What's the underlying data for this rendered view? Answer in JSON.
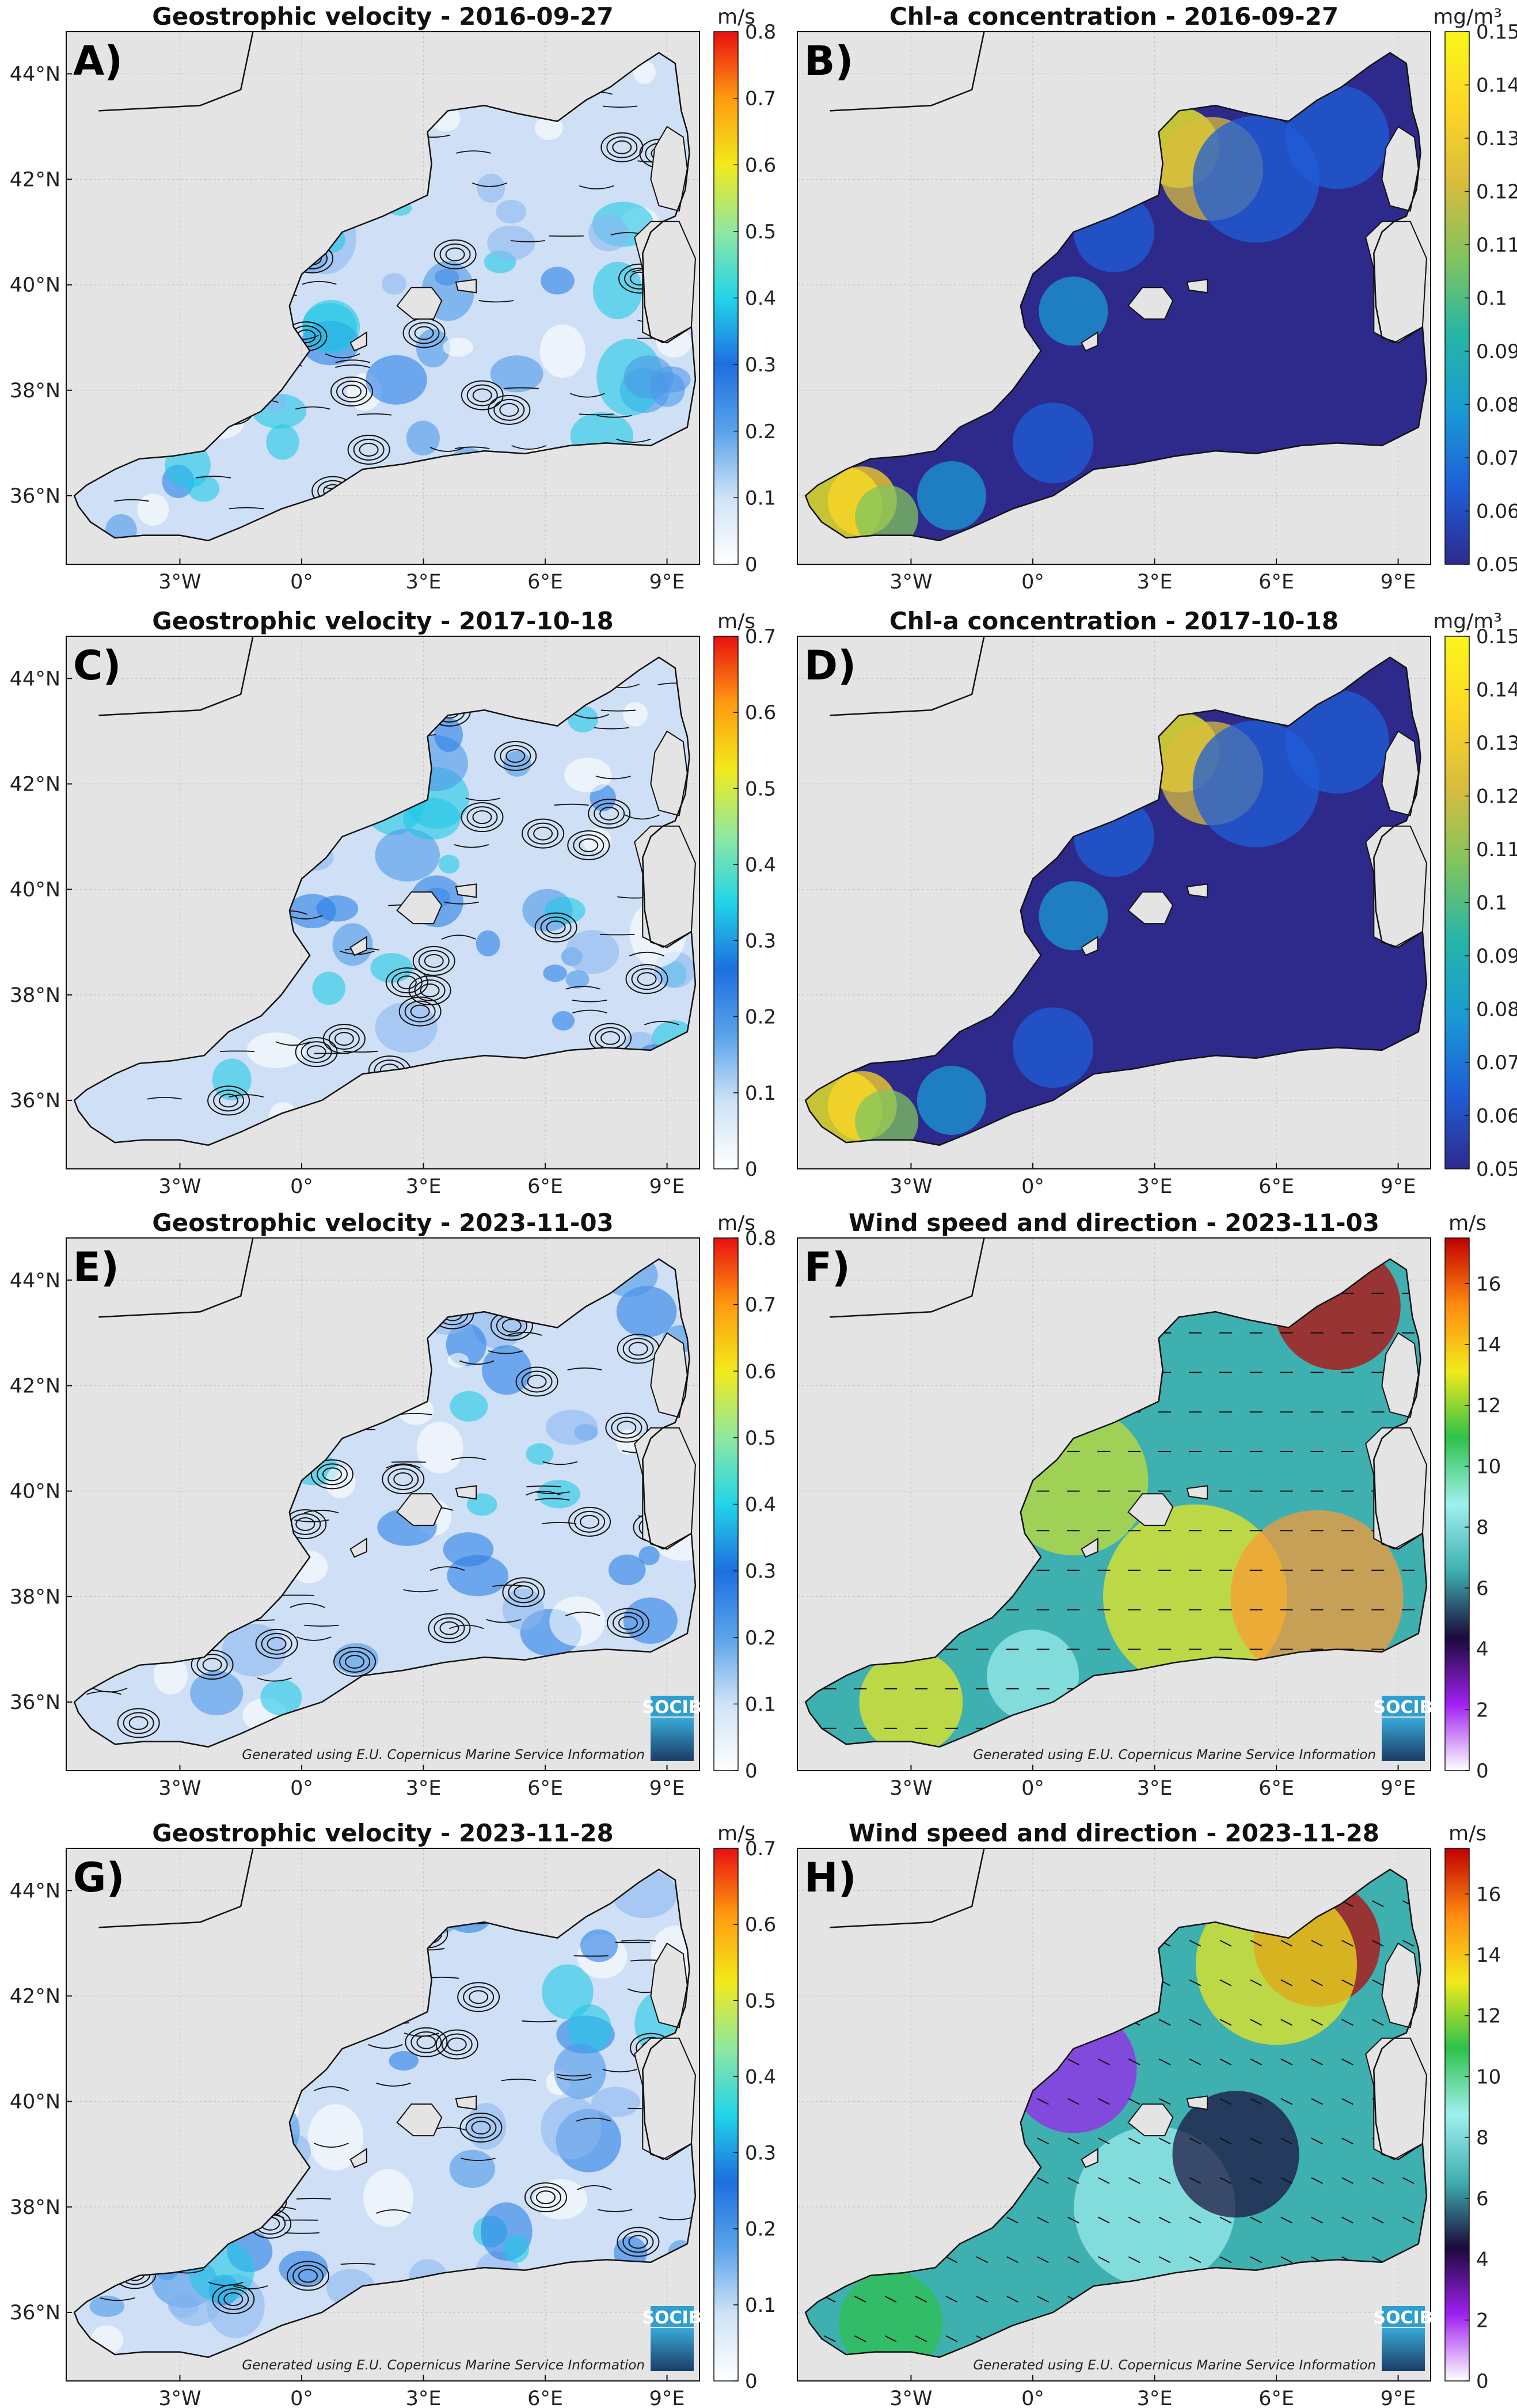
{
  "panels": [
    {
      "id": "A",
      "kind": "velocity",
      "label": "A)",
      "title": "Geostrophic velocity - 2016-09-27",
      "colorbar": {
        "unit": "m/s",
        "ticks": [
          "0",
          "0.1",
          "0.2",
          "0.3",
          "0.4",
          "0.5",
          "0.6",
          "0.7",
          "0.8"
        ]
      },
      "x_ticks": [
        "3°W",
        "0°",
        "3°E",
        "6°E",
        "9°E"
      ],
      "y_ticks": [
        "36°N",
        "38°N",
        "40°N",
        "42°N",
        "44°N"
      ],
      "credit": "",
      "logo": ""
    },
    {
      "id": "B",
      "kind": "chl",
      "label": "B)",
      "title": "Chl-a concentration - 2016-09-27",
      "colorbar": {
        "unit": "mg/m³",
        "ticks": [
          "0.05",
          "0.06",
          "0.07",
          "0.08",
          "0.09",
          "0.1",
          "0.11",
          "0.12",
          "0.13",
          "0.14",
          "0.15"
        ]
      },
      "x_ticks": [
        "3°W",
        "0°",
        "3°E",
        "6°E",
        "9°E"
      ],
      "y_ticks": [],
      "credit": "",
      "logo": ""
    },
    {
      "id": "C",
      "kind": "velocity",
      "label": "C)",
      "title": "Geostrophic velocity - 2017-10-18",
      "colorbar": {
        "unit": "m/s",
        "ticks": [
          "0",
          "0.1",
          "0.2",
          "0.3",
          "0.4",
          "0.5",
          "0.6",
          "0.7"
        ]
      },
      "x_ticks": [
        "3°W",
        "0°",
        "3°E",
        "6°E",
        "9°E"
      ],
      "y_ticks": [
        "36°N",
        "38°N",
        "40°N",
        "42°N",
        "44°N"
      ],
      "credit": "",
      "logo": ""
    },
    {
      "id": "D",
      "kind": "chl",
      "label": "D)",
      "title": "Chl-a concentration - 2017-10-18",
      "colorbar": {
        "unit": "mg/m³",
        "ticks": [
          "0.05",
          "0.06",
          "0.07",
          "0.08",
          "0.09",
          "0.1",
          "0.11",
          "0.12",
          "0.13",
          "0.14",
          "0.15"
        ]
      },
      "x_ticks": [
        "3°W",
        "0°",
        "3°E",
        "6°E",
        "9°E"
      ],
      "y_ticks": [],
      "credit": "",
      "logo": ""
    },
    {
      "id": "E",
      "kind": "velocity",
      "label": "E)",
      "title": "Geostrophic velocity - 2023-11-03",
      "colorbar": {
        "unit": "m/s",
        "ticks": [
          "0",
          "0.1",
          "0.2",
          "0.3",
          "0.4",
          "0.5",
          "0.6",
          "0.7",
          "0.8"
        ]
      },
      "x_ticks": [
        "3°W",
        "0°",
        "3°E",
        "6°E",
        "9°E"
      ],
      "y_ticks": [
        "36°N",
        "38°N",
        "40°N",
        "42°N",
        "44°N"
      ],
      "credit": "Generated using E.U. Copernicus Marine Service Information",
      "logo": "SOCIB"
    },
    {
      "id": "F",
      "kind": "wind",
      "label": "F)",
      "title": "Wind speed and direction - 2023-11-03",
      "colorbar": {
        "unit": "m/s",
        "ticks": [
          "0",
          "2",
          "4",
          "6",
          "8",
          "10",
          "12",
          "14",
          "16"
        ]
      },
      "x_ticks": [
        "3°W",
        "0°",
        "3°E",
        "6°E",
        "9°E"
      ],
      "y_ticks": [],
      "credit": "Generated using E.U. Copernicus Marine Service Information",
      "logo": "SOCIB"
    },
    {
      "id": "G",
      "kind": "velocity",
      "label": "G)",
      "title": "Geostrophic velocity - 2023-11-28",
      "colorbar": {
        "unit": "m/s",
        "ticks": [
          "0",
          "0.1",
          "0.2",
          "0.3",
          "0.4",
          "0.5",
          "0.6",
          "0.7"
        ]
      },
      "x_ticks": [
        "3°W",
        "0°",
        "3°E",
        "6°E",
        "9°E"
      ],
      "y_ticks": [
        "36°N",
        "38°N",
        "40°N",
        "42°N",
        "44°N"
      ],
      "credit": "Generated using E.U. Copernicus Marine Service Information",
      "logo": "SOCIB"
    },
    {
      "id": "H",
      "kind": "wind",
      "label": "H)",
      "title": "Wind speed and direction - 2023-11-28",
      "colorbar": {
        "unit": "m/s",
        "ticks": [
          "0",
          "2",
          "4",
          "6",
          "8",
          "10",
          "12",
          "14",
          "16"
        ]
      },
      "x_ticks": [
        "3°W",
        "0°",
        "3°E",
        "6°E",
        "9°E"
      ],
      "y_ticks": [],
      "credit": "Generated using E.U. Copernicus Marine Service Information",
      "logo": "SOCIB"
    }
  ],
  "colors": {
    "land": "#e4e4e4",
    "velocity_scale": [
      "#ffffff",
      "#cfe3f7",
      "#5aa3ea",
      "#1d6fe0",
      "#22d4e8",
      "#8fe8a0",
      "#f2ea1a",
      "#ff9a10",
      "#e81010"
    ],
    "chl_scale": [
      "#2d2a8c",
      "#1f5ed8",
      "#1b9ad4",
      "#25b5a8",
      "#7fc45f",
      "#d8bc3e",
      "#fdd625",
      "#f9f71a"
    ],
    "wind_scale": [
      "#ffffff",
      "#a020f0",
      "#1a0a3a",
      "#3fb0b0",
      "#9ff0ee",
      "#2ec24a",
      "#f2ea1a",
      "#ff8a10",
      "#c00000"
    ]
  }
}
